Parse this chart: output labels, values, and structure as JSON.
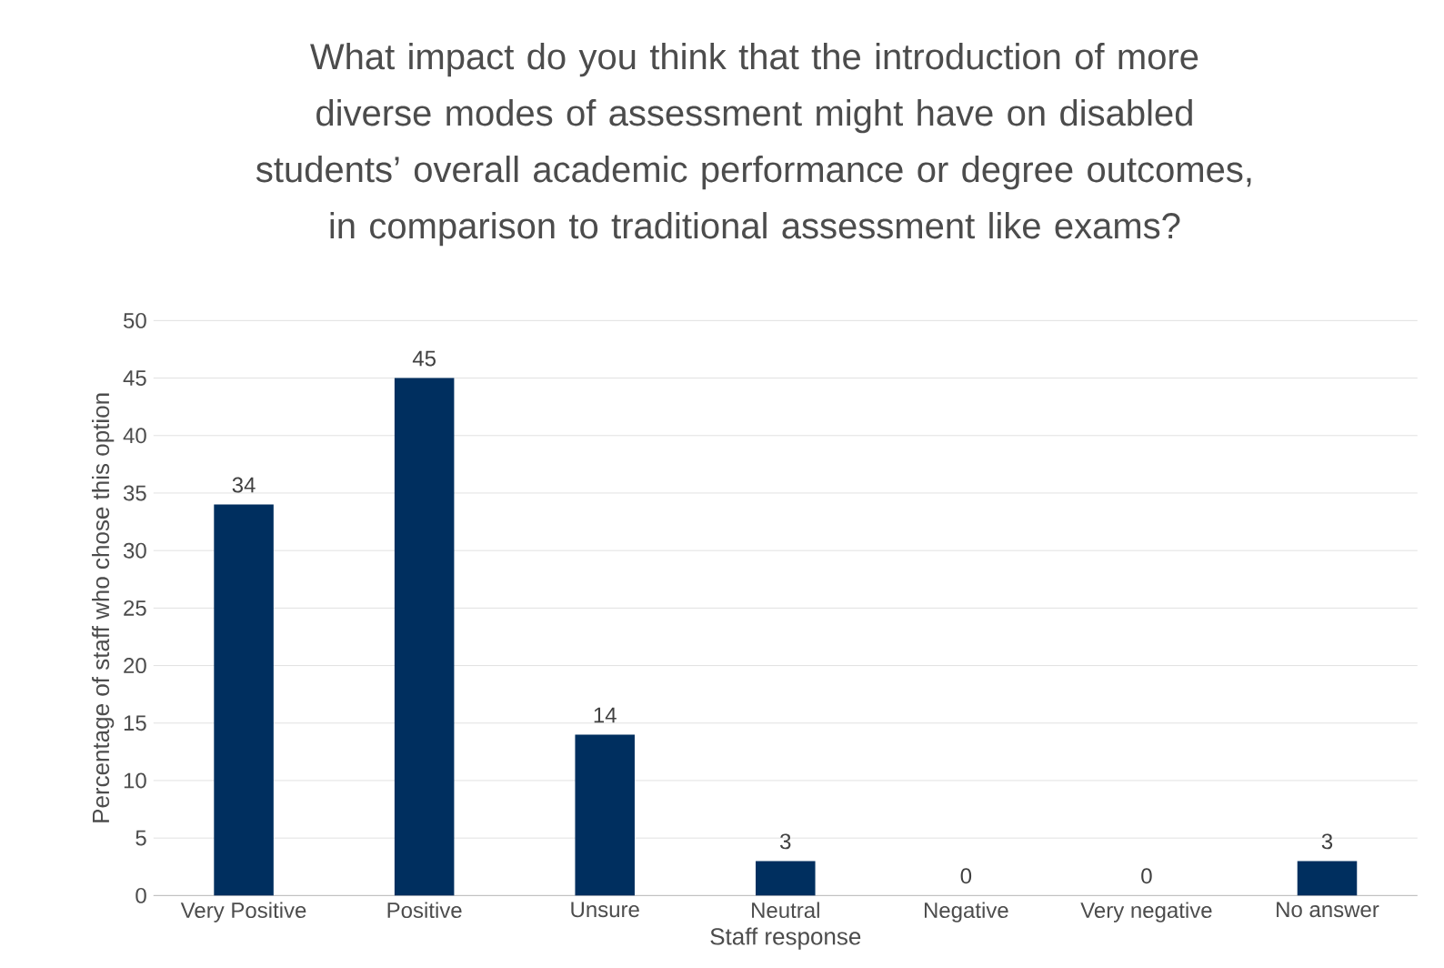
{
  "chart_data": {
    "type": "bar",
    "title": "What impact do you think that the introduction of more diverse modes of assessment might have on disabled students’ overall academic performance or degree outcomes, in comparison to traditional assessment like exams?",
    "xlabel": "Staff response",
    "ylabel": "Percentage of staff who chose this option",
    "categories": [
      "Very Positive",
      "Positive",
      "Unsure",
      "Neutral",
      "Negative",
      "Very negative",
      "No answer"
    ],
    "values": [
      34,
      45,
      14,
      3,
      0,
      0,
      3
    ],
    "color": "#002f5f",
    "ylim": [
      0,
      50
    ],
    "yticks": [
      0,
      5,
      10,
      15,
      20,
      25,
      30,
      35,
      40,
      45,
      50
    ],
    "grid": "y",
    "data_labels": true
  }
}
